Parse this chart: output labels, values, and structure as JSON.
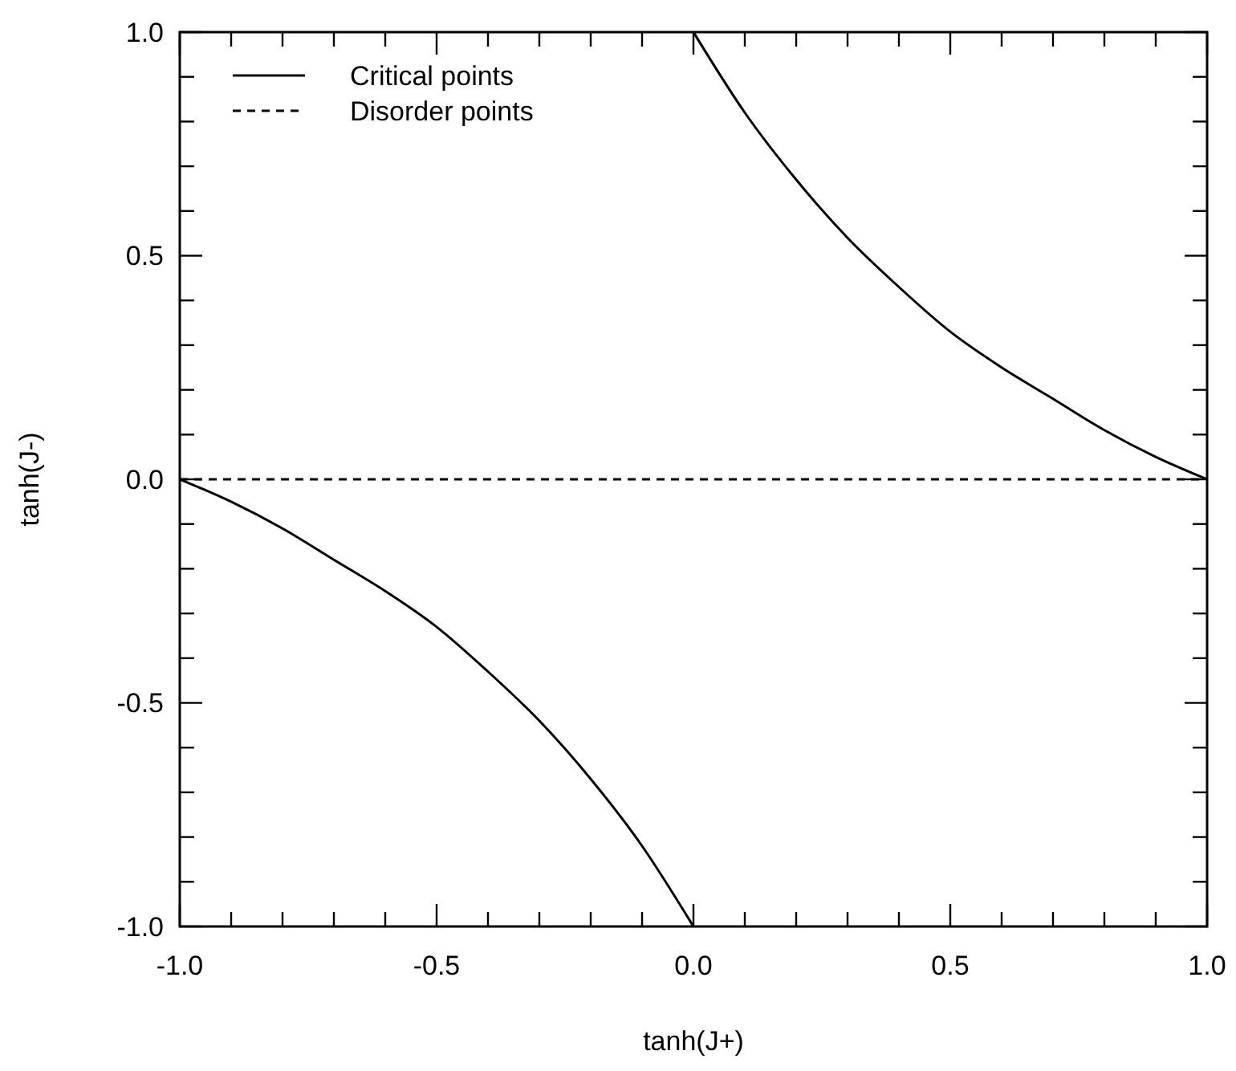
{
  "chart_data": {
    "type": "line",
    "xlabel": "tanh(J+)",
    "ylabel": "tanh(J-)",
    "xlim": [
      -1.0,
      1.0
    ],
    "ylim": [
      -1.0,
      1.0
    ],
    "xticks": [
      {
        "value": -1.0,
        "label": "-1.0"
      },
      {
        "value": -0.9,
        "label": null
      },
      {
        "value": -0.8,
        "label": null
      },
      {
        "value": -0.7,
        "label": null
      },
      {
        "value": -0.6,
        "label": null
      },
      {
        "value": -0.5,
        "label": "-0.5"
      },
      {
        "value": -0.4,
        "label": null
      },
      {
        "value": -0.3,
        "label": null
      },
      {
        "value": -0.2,
        "label": null
      },
      {
        "value": -0.1,
        "label": null
      },
      {
        "value": 0.0,
        "label": "0.0"
      },
      {
        "value": 0.1,
        "label": null
      },
      {
        "value": 0.2,
        "label": null
      },
      {
        "value": 0.3,
        "label": null
      },
      {
        "value": 0.4,
        "label": null
      },
      {
        "value": 0.5,
        "label": "0.5"
      },
      {
        "value": 0.6,
        "label": null
      },
      {
        "value": 0.7,
        "label": null
      },
      {
        "value": 0.8,
        "label": null
      },
      {
        "value": 0.9,
        "label": null
      },
      {
        "value": 1.0,
        "label": "1.0"
      }
    ],
    "yticks": [
      {
        "value": -1.0,
        "label": "-1.0"
      },
      {
        "value": -0.9,
        "label": null
      },
      {
        "value": -0.8,
        "label": null
      },
      {
        "value": -0.7,
        "label": null
      },
      {
        "value": -0.6,
        "label": null
      },
      {
        "value": -0.5,
        "label": "-0.5"
      },
      {
        "value": -0.4,
        "label": null
      },
      {
        "value": -0.3,
        "label": null
      },
      {
        "value": -0.2,
        "label": null
      },
      {
        "value": -0.1,
        "label": null
      },
      {
        "value": 0.0,
        "label": "0.0"
      },
      {
        "value": 0.1,
        "label": null
      },
      {
        "value": 0.2,
        "label": null
      },
      {
        "value": 0.3,
        "label": null
      },
      {
        "value": 0.4,
        "label": null
      },
      {
        "value": 0.5,
        "label": "0.5"
      },
      {
        "value": 0.6,
        "label": null
      },
      {
        "value": 0.7,
        "label": null
      },
      {
        "value": 0.8,
        "label": null
      },
      {
        "value": 0.9,
        "label": null
      },
      {
        "value": 1.0,
        "label": "1.0"
      }
    ],
    "legend": "top left",
    "grid": false,
    "marker": "none",
    "series": [
      {
        "name": "Critical points",
        "color": "#000000",
        "line_style": "solid",
        "x": [
          0,
          0.1,
          0.2,
          0.3,
          0.4,
          0.5,
          0.6,
          0.7,
          0.8,
          0.9,
          1.0
        ],
        "values": [
          1.0,
          0.82,
          0.67,
          0.54,
          0.43,
          0.33,
          0.25,
          0.18,
          0.11,
          0.05,
          0
        ]
      },
      {
        "color": "#000000",
        "line_style": "solid",
        "x": [
          -1.0,
          -0.9,
          -0.8,
          -0.7,
          -0.6,
          -0.5,
          -0.4,
          -0.3,
          -0.2,
          -0.1,
          0
        ],
        "values": [
          0,
          -0.05,
          -0.11,
          -0.18,
          -0.25,
          -0.33,
          -0.43,
          -0.54,
          -0.67,
          -0.82,
          -1.0
        ]
      },
      {
        "name": "Disorder points",
        "color": "#000000",
        "line_style": "dashed",
        "x": [
          -1.0,
          1.0
        ],
        "values": [
          0,
          0
        ]
      }
    ]
  }
}
